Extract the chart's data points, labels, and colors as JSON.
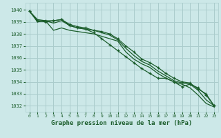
{
  "xlabel": "Graphe pression niveau de la mer (hPa)",
  "bg_color": "#cce8e8",
  "grid_color": "#aacccc",
  "line_color": "#1a5c2a",
  "marker_color": "#1a5c2a",
  "xlim": [
    -0.5,
    23.5
  ],
  "ylim": [
    1031.5,
    1040.6
  ],
  "yticks": [
    1032,
    1033,
    1034,
    1035,
    1036,
    1037,
    1038,
    1039,
    1040
  ],
  "xticks": [
    0,
    1,
    2,
    3,
    4,
    5,
    6,
    7,
    8,
    9,
    10,
    11,
    12,
    13,
    14,
    15,
    16,
    17,
    18,
    19,
    20,
    21,
    22,
    23
  ],
  "series": [
    {
      "x": [
        0,
        1,
        2,
        3,
        4,
        5,
        6,
        7,
        8,
        9,
        10,
        11,
        12,
        13,
        14,
        15,
        16,
        17,
        18,
        19,
        20,
        21,
        22,
        23
      ],
      "y": [
        1039.9,
        1039.0,
        1039.1,
        1038.3,
        1038.5,
        1038.3,
        1038.2,
        1038.1,
        1038.0,
        1037.8,
        1037.6,
        1037.4,
        1036.5,
        1035.9,
        1035.5,
        1035.2,
        1034.7,
        1034.3,
        1034.0,
        1033.8,
        1033.5,
        1032.9,
        1032.2,
        1031.9
      ],
      "has_markers": false
    },
    {
      "x": [
        0,
        1,
        2,
        3,
        4,
        5,
        6,
        7,
        8,
        9,
        10,
        11,
        12,
        13,
        14,
        15,
        16,
        17,
        18,
        19,
        20,
        21,
        22,
        23
      ],
      "y": [
        1039.9,
        1039.2,
        1039.1,
        1038.9,
        1039.1,
        1038.7,
        1038.5,
        1038.4,
        1038.3,
        1038.1,
        1037.9,
        1037.5,
        1036.8,
        1036.2,
        1035.7,
        1035.4,
        1034.9,
        1034.5,
        1034.1,
        1033.9,
        1033.8,
        1033.3,
        1032.5,
        1032.0
      ],
      "has_markers": false
    },
    {
      "x": [
        0,
        1,
        2,
        3,
        4,
        5,
        6,
        7,
        8,
        9,
        10,
        11,
        12,
        13,
        14,
        15,
        16,
        17,
        18,
        19,
        20,
        21,
        22,
        23
      ],
      "y": [
        1039.9,
        1039.1,
        1039.1,
        1039.1,
        1039.2,
        1038.8,
        1038.6,
        1038.5,
        1038.3,
        1038.2,
        1038.0,
        1037.6,
        1037.0,
        1036.5,
        1035.9,
        1035.6,
        1035.2,
        1034.7,
        1034.3,
        1034.0,
        1033.9,
        1033.4,
        1033.0,
        1032.0
      ],
      "has_markers": true
    },
    {
      "x": [
        0,
        1,
        2,
        3,
        4,
        5,
        6,
        7,
        8,
        9,
        10,
        11,
        12,
        13,
        14,
        15,
        16,
        17,
        18,
        19,
        20,
        21,
        22,
        23
      ],
      "y": [
        1039.9,
        1039.1,
        1039.0,
        1039.1,
        1039.2,
        1038.7,
        1038.5,
        1038.4,
        1038.1,
        1037.6,
        1037.1,
        1036.6,
        1036.1,
        1035.6,
        1035.1,
        1034.7,
        1034.3,
        1034.3,
        1034.0,
        1033.6,
        1033.8,
        1033.5,
        1032.9,
        1032.0
      ],
      "has_markers": true
    }
  ]
}
